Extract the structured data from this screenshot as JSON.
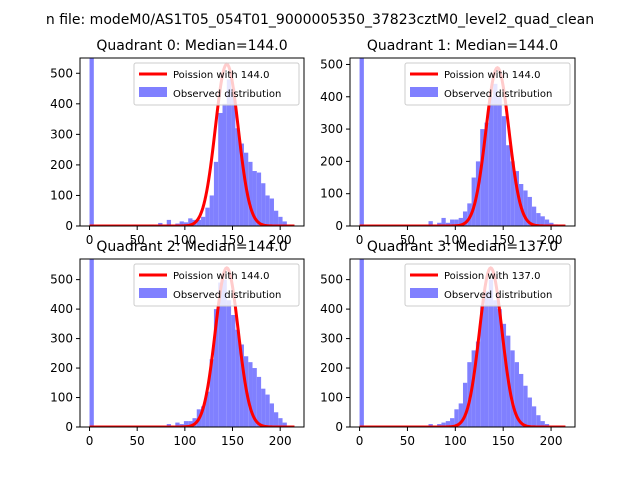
{
  "chart_data": {
    "type": "bar",
    "suptitle": "n file: modeM0/AS1T05_054T01_9000005350_37823cztM0_level2_quad_clean",
    "colors": {
      "histogram": "#8080ff",
      "poisson_curve": "#ff0000"
    },
    "legend_location": "top-right",
    "panels": [
      {
        "title": "Quadrant 0: Median=144.0",
        "xlim": [
          -10,
          225
        ],
        "ylim": [
          0,
          550
        ],
        "xticks": [
          0,
          50,
          100,
          150,
          200
        ],
        "yticks": [
          0,
          100,
          200,
          300,
          400,
          500
        ],
        "legend": [
          "Poission with 144.0",
          "Observed distribution"
        ],
        "poisson_mean": 144,
        "poisson_peak": 530,
        "bin_width": 4.5,
        "histogram": [
          {
            "x": 0,
            "y": 550
          },
          {
            "x": 45,
            "y": 5
          },
          {
            "x": 63,
            "y": 5
          },
          {
            "x": 72,
            "y": 10
          },
          {
            "x": 81,
            "y": 20
          },
          {
            "x": 90,
            "y": 8
          },
          {
            "x": 94.5,
            "y": 15
          },
          {
            "x": 99,
            "y": 12
          },
          {
            "x": 103.5,
            "y": 25
          },
          {
            "x": 108,
            "y": 20
          },
          {
            "x": 112.5,
            "y": 20
          },
          {
            "x": 117,
            "y": 30
          },
          {
            "x": 121.5,
            "y": 60
          },
          {
            "x": 126,
            "y": 100
          },
          {
            "x": 130.5,
            "y": 210
          },
          {
            "x": 135,
            "y": 370
          },
          {
            "x": 139.5,
            "y": 400
          },
          {
            "x": 144,
            "y": 480
          },
          {
            "x": 148.5,
            "y": 450
          },
          {
            "x": 153,
            "y": 320
          },
          {
            "x": 157.5,
            "y": 270
          },
          {
            "x": 162,
            "y": 240
          },
          {
            "x": 166.5,
            "y": 210
          },
          {
            "x": 171,
            "y": 180
          },
          {
            "x": 175.5,
            "y": 175
          },
          {
            "x": 180,
            "y": 140
          },
          {
            "x": 184.5,
            "y": 100
          },
          {
            "x": 189,
            "y": 90
          },
          {
            "x": 193.5,
            "y": 50
          },
          {
            "x": 198,
            "y": 30
          },
          {
            "x": 202.5,
            "y": 15
          },
          {
            "x": 207,
            "y": 5
          }
        ]
      },
      {
        "title": "Quadrant 1: Median=144.0",
        "xlim": [
          -10,
          225
        ],
        "ylim": [
          0,
          520
        ],
        "xticks": [
          0,
          50,
          100,
          150,
          200
        ],
        "yticks": [
          0,
          100,
          200,
          300,
          400,
          500
        ],
        "legend": [
          "Poission with 144.0",
          "Observed distribution"
        ],
        "poisson_mean": 144,
        "poisson_peak": 490,
        "bin_width": 4.5,
        "histogram": [
          {
            "x": 0,
            "y": 520
          },
          {
            "x": 72,
            "y": 15
          },
          {
            "x": 81,
            "y": 10
          },
          {
            "x": 85.5,
            "y": 25
          },
          {
            "x": 90,
            "y": 10
          },
          {
            "x": 94.5,
            "y": 20
          },
          {
            "x": 99,
            "y": 20
          },
          {
            "x": 103.5,
            "y": 25
          },
          {
            "x": 108,
            "y": 45
          },
          {
            "x": 112.5,
            "y": 70
          },
          {
            "x": 117,
            "y": 150
          },
          {
            "x": 121.5,
            "y": 200
          },
          {
            "x": 126,
            "y": 300
          },
          {
            "x": 130.5,
            "y": 320
          },
          {
            "x": 135,
            "y": 400
          },
          {
            "x": 139.5,
            "y": 440
          },
          {
            "x": 144,
            "y": 400
          },
          {
            "x": 148.5,
            "y": 340
          },
          {
            "x": 153,
            "y": 250
          },
          {
            "x": 157.5,
            "y": 200
          },
          {
            "x": 162,
            "y": 170
          },
          {
            "x": 166.5,
            "y": 130
          },
          {
            "x": 171,
            "y": 110
          },
          {
            "x": 175.5,
            "y": 90
          },
          {
            "x": 180,
            "y": 60
          },
          {
            "x": 184.5,
            "y": 40
          },
          {
            "x": 189,
            "y": 30
          },
          {
            "x": 193.5,
            "y": 20
          },
          {
            "x": 198,
            "y": 10
          },
          {
            "x": 202.5,
            "y": 5
          }
        ]
      },
      {
        "title": "Quadrant 2: Median=144.0",
        "xlim": [
          -10,
          225
        ],
        "ylim": [
          0,
          570
        ],
        "xticks": [
          0,
          50,
          100,
          150,
          200
        ],
        "yticks": [
          0,
          100,
          200,
          300,
          400,
          500
        ],
        "legend": [
          "Poission with 144.0",
          "Observed distribution"
        ],
        "poisson_mean": 144,
        "poisson_peak": 540,
        "bin_width": 4.5,
        "histogram": [
          {
            "x": 0,
            "y": 570
          },
          {
            "x": 81,
            "y": 10
          },
          {
            "x": 90,
            "y": 15
          },
          {
            "x": 94.5,
            "y": 10
          },
          {
            "x": 99,
            "y": 20
          },
          {
            "x": 103.5,
            "y": 20
          },
          {
            "x": 108,
            "y": 30
          },
          {
            "x": 112.5,
            "y": 60
          },
          {
            "x": 117,
            "y": 70
          },
          {
            "x": 121.5,
            "y": 120
          },
          {
            "x": 126,
            "y": 230
          },
          {
            "x": 130.5,
            "y": 400
          },
          {
            "x": 135,
            "y": 490
          },
          {
            "x": 139.5,
            "y": 500
          },
          {
            "x": 144,
            "y": 430
          },
          {
            "x": 148.5,
            "y": 380
          },
          {
            "x": 153,
            "y": 330
          },
          {
            "x": 157.5,
            "y": 280
          },
          {
            "x": 162,
            "y": 240
          },
          {
            "x": 166.5,
            "y": 220
          },
          {
            "x": 171,
            "y": 200
          },
          {
            "x": 175.5,
            "y": 170
          },
          {
            "x": 180,
            "y": 130
          },
          {
            "x": 184.5,
            "y": 110
          },
          {
            "x": 189,
            "y": 80
          },
          {
            "x": 193.5,
            "y": 50
          },
          {
            "x": 198,
            "y": 30
          },
          {
            "x": 202.5,
            "y": 15
          },
          {
            "x": 207,
            "y": 5
          }
        ]
      },
      {
        "title": "Quadrant 3: Median=137.0",
        "xlim": [
          -10,
          225
        ],
        "ylim": [
          0,
          570
        ],
        "xticks": [
          0,
          50,
          100,
          150,
          200
        ],
        "yticks": [
          0,
          100,
          200,
          300,
          400,
          500
        ],
        "legend": [
          "Poission with 137.0",
          "Observed distribution"
        ],
        "poisson_mean": 137,
        "poisson_peak": 540,
        "bin_width": 4.5,
        "histogram": [
          {
            "x": 0,
            "y": 570
          },
          {
            "x": 58.5,
            "y": 5
          },
          {
            "x": 72,
            "y": 10
          },
          {
            "x": 81,
            "y": 10
          },
          {
            "x": 85.5,
            "y": 15
          },
          {
            "x": 90,
            "y": 20
          },
          {
            "x": 94.5,
            "y": 30
          },
          {
            "x": 99,
            "y": 60
          },
          {
            "x": 103.5,
            "y": 80
          },
          {
            "x": 108,
            "y": 150
          },
          {
            "x": 112.5,
            "y": 220
          },
          {
            "x": 117,
            "y": 260
          },
          {
            "x": 121.5,
            "y": 290
          },
          {
            "x": 126,
            "y": 410
          },
          {
            "x": 130.5,
            "y": 460
          },
          {
            "x": 135,
            "y": 500
          },
          {
            "x": 139.5,
            "y": 430
          },
          {
            "x": 144,
            "y": 400
          },
          {
            "x": 148.5,
            "y": 350
          },
          {
            "x": 153,
            "y": 310
          },
          {
            "x": 157.5,
            "y": 260
          },
          {
            "x": 162,
            "y": 220
          },
          {
            "x": 166.5,
            "y": 180
          },
          {
            "x": 171,
            "y": 140
          },
          {
            "x": 175.5,
            "y": 100
          },
          {
            "x": 180,
            "y": 70
          },
          {
            "x": 184.5,
            "y": 40
          },
          {
            "x": 189,
            "y": 20
          },
          {
            "x": 193.5,
            "y": 10
          }
        ]
      }
    ]
  }
}
